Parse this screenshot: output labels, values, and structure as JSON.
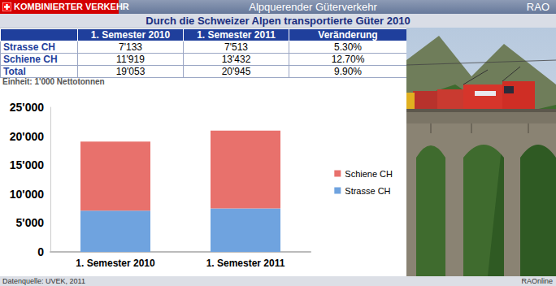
{
  "header": {
    "section": "KOMBINIERTER VERKEHR",
    "title": "Alpquerender Güterverkehr",
    "brand": "RAO",
    "subtitle": "Durch die Schweizer Alpen transportierte Güter 2010"
  },
  "table": {
    "columns": [
      "",
      "1. Semester 2010",
      "1. Semester 2011",
      "Veränderung"
    ],
    "rows": [
      [
        "Strasse CH",
        "7'133",
        "7'513",
        "5.30%"
      ],
      [
        "Schiene CH",
        "11'919",
        "13'432",
        "12.70%"
      ],
      [
        "Total",
        "19'053",
        "20'945",
        "9.90%"
      ]
    ]
  },
  "unit_note": "Einheit: 1'000 Nettotonnen",
  "chart_data": {
    "type": "bar",
    "stacked": true,
    "categories": [
      "1. Semester 2010",
      "1. Semester 2011"
    ],
    "series": [
      {
        "name": "Strasse CH",
        "color": "#6fa3df",
        "values": [
          7133,
          7513
        ]
      },
      {
        "name": "Schiene CH",
        "color": "#e8716c",
        "values": [
          11919,
          13432
        ]
      }
    ],
    "ylim": [
      0,
      25000
    ],
    "yticks": [
      {
        "value": 0,
        "label": "0"
      },
      {
        "value": 5000,
        "label": "5'000"
      },
      {
        "value": 10000,
        "label": "10'000"
      },
      {
        "value": 15000,
        "label": "15'000"
      },
      {
        "value": 20000,
        "label": "20'000"
      },
      {
        "value": 25000,
        "label": "25'000"
      }
    ],
    "grid": false,
    "legend": "right"
  },
  "footer": {
    "source": "Datenquelle: UVEK, 2011",
    "credit": "RAOnline"
  }
}
